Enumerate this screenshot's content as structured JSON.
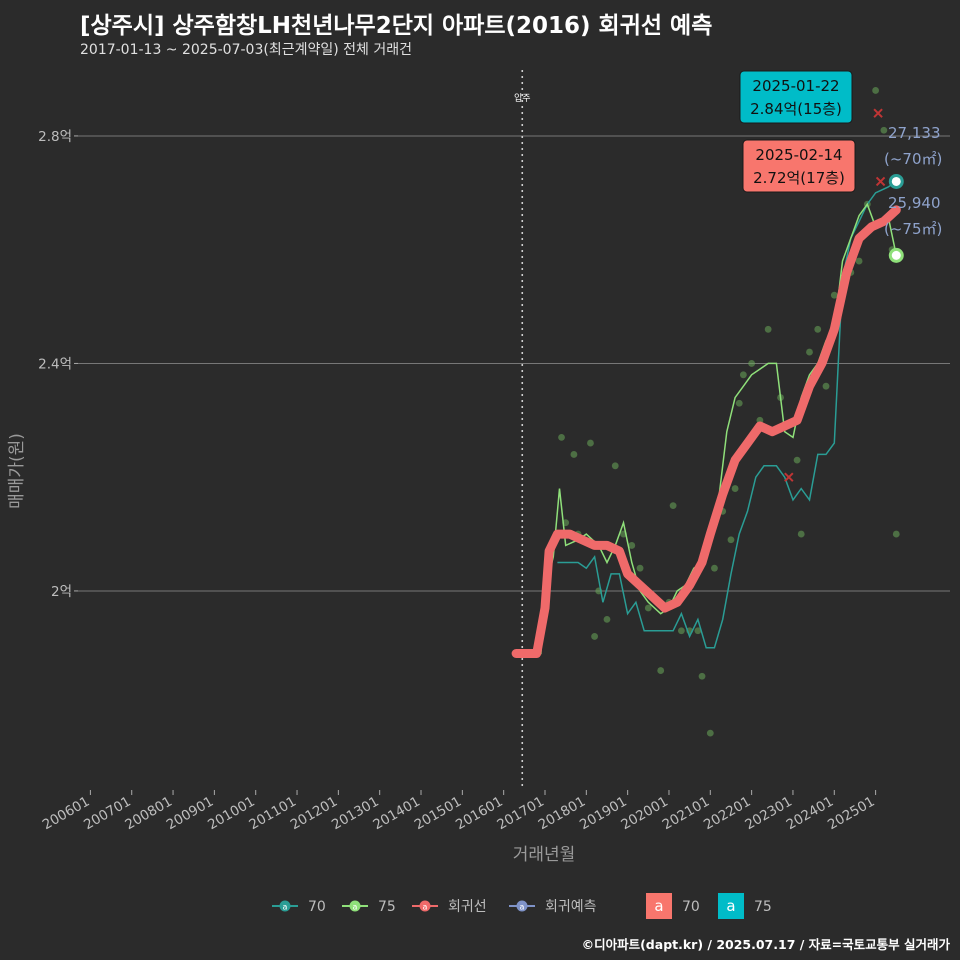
{
  "title": "[상주시] 상주함창LH천년나무2단지 아파트(2016) 회귀선 예측",
  "subtitle": "2017-01-13 ~ 2025-07-03(최근계약일) 전체 거래건",
  "footer": "©디아파트(dapt.kr) / 2025.07.17 / 자료=국토교통부 실거래가",
  "chart_data": {
    "type": "line",
    "xlabel": "거래년월",
    "ylabel": "매매가(원)",
    "x_range": [
      2005.7,
      2026.8
    ],
    "ylim": [
      1.65,
      2.93
    ],
    "y_ticks": [
      {
        "v": 2.0,
        "label": "2억"
      },
      {
        "v": 2.4,
        "label": "2.4억"
      },
      {
        "v": 2.8,
        "label": "2.8억"
      }
    ],
    "x_ticks": [
      "200601",
      "200701",
      "200801",
      "200901",
      "201001",
      "201101",
      "201201",
      "201301",
      "201401",
      "201501",
      "201601",
      "201701",
      "201801",
      "201901",
      "202001",
      "202101",
      "202201",
      "202301",
      "202401",
      "202501"
    ],
    "move_in_line": {
      "x": 2016.45,
      "label": "입주"
    },
    "series": [
      {
        "name": "70",
        "color": "#2a9d95",
        "points": [
          [
            2017.3,
            2.05
          ],
          [
            2017.8,
            2.05
          ],
          [
            2018.0,
            2.04
          ],
          [
            2018.2,
            2.06
          ],
          [
            2018.4,
            1.98
          ],
          [
            2018.6,
            2.03
          ],
          [
            2018.8,
            2.03
          ],
          [
            2019.0,
            1.96
          ],
          [
            2019.2,
            1.98
          ],
          [
            2019.4,
            1.93
          ],
          [
            2019.6,
            1.93
          ],
          [
            2019.9,
            1.93
          ],
          [
            2020.1,
            1.93
          ],
          [
            2020.3,
            1.96
          ],
          [
            2020.5,
            1.92
          ],
          [
            2020.7,
            1.95
          ],
          [
            2020.9,
            1.9
          ],
          [
            2021.1,
            1.9
          ],
          [
            2021.3,
            1.95
          ],
          [
            2021.5,
            2.03
          ],
          [
            2021.7,
            2.1
          ],
          [
            2021.9,
            2.14
          ],
          [
            2022.1,
            2.2
          ],
          [
            2022.3,
            2.22
          ],
          [
            2022.6,
            2.22
          ],
          [
            2022.8,
            2.2
          ],
          [
            2023.0,
            2.16
          ],
          [
            2023.2,
            2.18
          ],
          [
            2023.4,
            2.16
          ],
          [
            2023.6,
            2.24
          ],
          [
            2023.8,
            2.24
          ],
          [
            2024.0,
            2.26
          ],
          [
            2024.2,
            2.55
          ],
          [
            2024.4,
            2.62
          ],
          [
            2024.6,
            2.65
          ],
          [
            2024.8,
            2.68
          ],
          [
            2025.0,
            2.7
          ],
          [
            2025.3,
            2.71
          ],
          [
            2025.5,
            2.72
          ]
        ]
      },
      {
        "name": "75",
        "color": "#8fe07a",
        "points": [
          [
            2016.7,
            1.89
          ],
          [
            2016.9,
            1.89
          ],
          [
            2017.0,
            2.0
          ],
          [
            2017.2,
            2.06
          ],
          [
            2017.35,
            2.18
          ],
          [
            2017.5,
            2.08
          ],
          [
            2017.8,
            2.09
          ],
          [
            2018.0,
            2.1
          ],
          [
            2018.3,
            2.08
          ],
          [
            2018.5,
            2.05
          ],
          [
            2018.7,
            2.08
          ],
          [
            2018.9,
            2.12
          ],
          [
            2019.1,
            2.05
          ],
          [
            2019.3,
            2.0
          ],
          [
            2019.5,
            1.98
          ],
          [
            2019.8,
            1.96
          ],
          [
            2020.0,
            1.97
          ],
          [
            2020.2,
            2.0
          ],
          [
            2020.4,
            2.01
          ],
          [
            2020.6,
            2.04
          ],
          [
            2020.8,
            2.05
          ],
          [
            2021.0,
            2.08
          ],
          [
            2021.2,
            2.16
          ],
          [
            2021.4,
            2.28
          ],
          [
            2021.6,
            2.34
          ],
          [
            2021.8,
            2.36
          ],
          [
            2022.0,
            2.38
          ],
          [
            2022.2,
            2.39
          ],
          [
            2022.4,
            2.4
          ],
          [
            2022.6,
            2.4
          ],
          [
            2022.8,
            2.28
          ],
          [
            2023.0,
            2.27
          ],
          [
            2023.2,
            2.34
          ],
          [
            2023.4,
            2.38
          ],
          [
            2023.6,
            2.4
          ],
          [
            2023.8,
            2.44
          ],
          [
            2024.0,
            2.46
          ],
          [
            2024.2,
            2.58
          ],
          [
            2024.4,
            2.62
          ],
          [
            2024.6,
            2.66
          ],
          [
            2024.8,
            2.68
          ],
          [
            2025.0,
            2.64
          ],
          [
            2025.3,
            2.66
          ],
          [
            2025.5,
            2.59
          ]
        ]
      },
      {
        "name": "회귀선",
        "color": "#ef6a6a",
        "points": [
          [
            2016.3,
            1.89
          ],
          [
            2016.8,
            1.89
          ],
          [
            2017.0,
            1.97
          ],
          [
            2017.1,
            2.07
          ],
          [
            2017.3,
            2.1
          ],
          [
            2017.6,
            2.1
          ],
          [
            2017.9,
            2.09
          ],
          [
            2018.2,
            2.08
          ],
          [
            2018.5,
            2.08
          ],
          [
            2018.8,
            2.07
          ],
          [
            2019.0,
            2.03
          ],
          [
            2019.3,
            2.01
          ],
          [
            2019.6,
            1.99
          ],
          [
            2019.9,
            1.97
          ],
          [
            2020.2,
            1.98
          ],
          [
            2020.5,
            2.01
          ],
          [
            2020.8,
            2.05
          ],
          [
            2021.0,
            2.1
          ],
          [
            2021.3,
            2.17
          ],
          [
            2021.6,
            2.23
          ],
          [
            2021.9,
            2.26
          ],
          [
            2022.2,
            2.29
          ],
          [
            2022.5,
            2.28
          ],
          [
            2022.8,
            2.29
          ],
          [
            2023.1,
            2.3
          ],
          [
            2023.4,
            2.36
          ],
          [
            2023.7,
            2.4
          ],
          [
            2024.0,
            2.46
          ],
          [
            2024.3,
            2.56
          ],
          [
            2024.6,
            2.62
          ],
          [
            2024.9,
            2.64
          ],
          [
            2025.2,
            2.65
          ],
          [
            2025.5,
            2.67
          ]
        ]
      }
    ],
    "scatter_points": [
      [
        2017.4,
        2.27
      ],
      [
        2017.5,
        2.12
      ],
      [
        2017.7,
        2.24
      ],
      [
        2017.8,
        2.1
      ],
      [
        2018.1,
        2.26
      ],
      [
        2018.2,
        1.92
      ],
      [
        2018.3,
        2.0
      ],
      [
        2018.5,
        1.95
      ],
      [
        2018.7,
        2.22
      ],
      [
        2018.9,
        2.1
      ],
      [
        2019.1,
        2.08
      ],
      [
        2019.3,
        2.04
      ],
      [
        2019.5,
        1.97
      ],
      [
        2019.8,
        1.86
      ],
      [
        2020.0,
        1.98
      ],
      [
        2020.1,
        2.15
      ],
      [
        2020.3,
        1.93
      ],
      [
        2020.5,
        1.93
      ],
      [
        2020.7,
        1.93
      ],
      [
        2020.8,
        1.85
      ],
      [
        2021.0,
        1.75
      ],
      [
        2021.1,
        2.04
      ],
      [
        2021.3,
        2.14
      ],
      [
        2021.5,
        2.09
      ],
      [
        2021.6,
        2.18
      ],
      [
        2021.7,
        2.33
      ],
      [
        2021.8,
        2.38
      ],
      [
        2022.0,
        2.4
      ],
      [
        2022.2,
        2.3
      ],
      [
        2022.4,
        2.46
      ],
      [
        2022.7,
        2.34
      ],
      [
        2023.1,
        2.23
      ],
      [
        2023.2,
        2.1
      ],
      [
        2023.4,
        2.42
      ],
      [
        2023.6,
        2.46
      ],
      [
        2023.8,
        2.36
      ],
      [
        2024.0,
        2.52
      ],
      [
        2024.2,
        2.53
      ],
      [
        2024.4,
        2.56
      ],
      [
        2024.6,
        2.58
      ],
      [
        2024.8,
        2.68
      ],
      [
        2025.0,
        2.88
      ],
      [
        2025.2,
        2.81
      ],
      [
        2025.4,
        2.6
      ],
      [
        2025.5,
        2.1
      ]
    ],
    "end_labels": [
      {
        "series": "70",
        "value": "27,133",
        "area": "(~70㎡)"
      },
      {
        "series": "75",
        "value": "25,940",
        "area": "(~75㎡)"
      }
    ],
    "callouts": [
      {
        "date": "2025-01-22",
        "price": "2.84억(15층)",
        "color": "#00bcc8",
        "x": 2025.06,
        "y": 2.84
      },
      {
        "date": "2025-02-14",
        "price": "2.72억(17층)",
        "color": "#f8766d",
        "x": 2025.12,
        "y": 2.72
      }
    ],
    "legend": [
      {
        "label": "70",
        "color": "#2a9d95"
      },
      {
        "label": "75",
        "color": "#8fe07a"
      },
      {
        "label": "회귀선",
        "color": "#ef6a6a"
      },
      {
        "label": "회귀예측",
        "color": "#7f93c8"
      }
    ],
    "legend_boxes": [
      {
        "glyph": "a",
        "label": "70",
        "color": "#f8766d"
      },
      {
        "glyph": "a",
        "label": "75",
        "color": "#00bcc8"
      }
    ]
  }
}
